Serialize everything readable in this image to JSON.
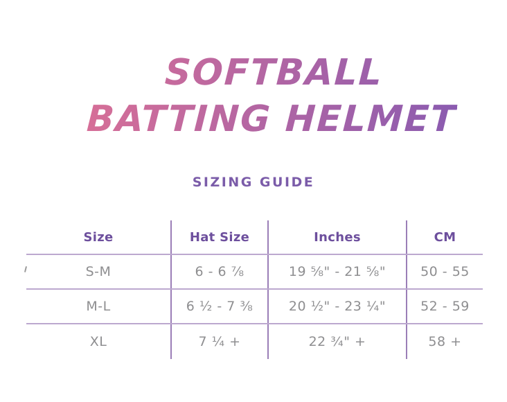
{
  "title": {
    "line1": "SOFTBALL",
    "line2": "BATTING HELMET",
    "gradient_start": "#d76f97",
    "gradient_end": "#8a5bb0"
  },
  "subtitle": "SIZING GUIDE",
  "colors": {
    "subtitle_text": "#7b5ca9",
    "header_text": "#6d4f9d",
    "body_text": "#8e8e90",
    "vline": "#9b7eb7",
    "hline": "#bca8cf",
    "artifact": "#9b9b9b"
  },
  "table": {
    "headers": [
      "Size",
      "Hat Size",
      "Inches",
      "CM"
    ],
    "rows": [
      [
        "S-M",
        "6 - 6 ⅞",
        "19 ⅝\" - 21 ⅝\"",
        "50 - 55"
      ],
      [
        "M-L",
        "6 ½ - 7 ⅜",
        "20 ½\" - 23 ¼\"",
        "52 - 59"
      ],
      [
        "XL",
        "7 ¼ +",
        "22 ¾\" +",
        "58 +"
      ]
    ]
  }
}
